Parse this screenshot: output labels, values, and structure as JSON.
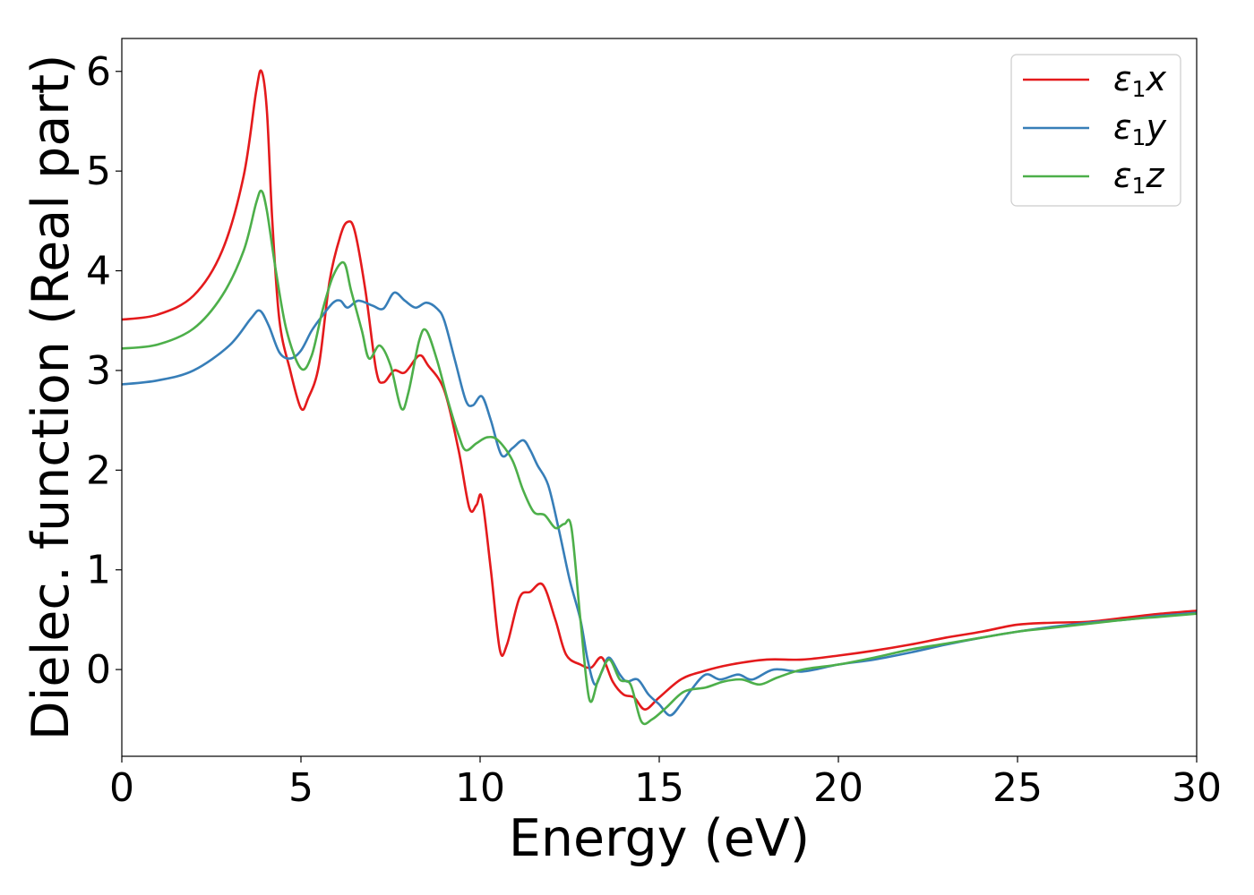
{
  "chart_data": {
    "type": "line",
    "xlabel": "Energy (eV)",
    "ylabel": "Dielec. function (Real part)",
    "xlim": [
      0,
      30
    ],
    "ylim": [
      -0.87,
      6.33
    ],
    "xticks": [
      "0",
      "5",
      "10",
      "15",
      "20",
      "25",
      "30"
    ],
    "yticks": [
      "0",
      "1",
      "2",
      "3",
      "4",
      "5",
      "6"
    ],
    "grid": false,
    "legend_position": "top-right",
    "series": [
      {
        "name": "ε1x",
        "legend_symbol": "ε",
        "legend_sub": "1",
        "legend_var": "x",
        "color": "#e41a1c",
        "points": [
          [
            0,
            3.51
          ],
          [
            1,
            3.56
          ],
          [
            2,
            3.75
          ],
          [
            2.8,
            4.2
          ],
          [
            3.4,
            4.95
          ],
          [
            3.75,
            5.8
          ],
          [
            3.9,
            6.0
          ],
          [
            4.05,
            5.6
          ],
          [
            4.2,
            4.5
          ],
          [
            4.4,
            3.5
          ],
          [
            4.7,
            3.0
          ],
          [
            5.0,
            2.62
          ],
          [
            5.2,
            2.72
          ],
          [
            5.5,
            3.05
          ],
          [
            5.8,
            3.9
          ],
          [
            6.1,
            4.35
          ],
          [
            6.3,
            4.49
          ],
          [
            6.5,
            4.4
          ],
          [
            6.8,
            3.8
          ],
          [
            7.1,
            3.0
          ],
          [
            7.3,
            2.88
          ],
          [
            7.6,
            3.0
          ],
          [
            7.9,
            2.98
          ],
          [
            8.3,
            3.15
          ],
          [
            8.55,
            3.05
          ],
          [
            9.0,
            2.8
          ],
          [
            9.4,
            2.2
          ],
          [
            9.7,
            1.62
          ],
          [
            9.9,
            1.65
          ],
          [
            10.05,
            1.72
          ],
          [
            10.3,
            1.0
          ],
          [
            10.55,
            0.2
          ],
          [
            10.75,
            0.25
          ],
          [
            11.1,
            0.72
          ],
          [
            11.4,
            0.78
          ],
          [
            11.75,
            0.85
          ],
          [
            12.1,
            0.5
          ],
          [
            12.4,
            0.15
          ],
          [
            12.8,
            0.05
          ],
          [
            13.1,
            0.02
          ],
          [
            13.4,
            0.12
          ],
          [
            13.7,
            -0.12
          ],
          [
            14.0,
            -0.25
          ],
          [
            14.3,
            -0.28
          ],
          [
            14.6,
            -0.4
          ],
          [
            15.0,
            -0.28
          ],
          [
            15.6,
            -0.1
          ],
          [
            16.2,
            -0.02
          ],
          [
            17.0,
            0.05
          ],
          [
            18.0,
            0.1
          ],
          [
            19.0,
            0.1
          ],
          [
            20.0,
            0.14
          ],
          [
            21.0,
            0.19
          ],
          [
            22.0,
            0.25
          ],
          [
            23.0,
            0.32
          ],
          [
            24.0,
            0.38
          ],
          [
            25.0,
            0.45
          ],
          [
            26.0,
            0.47
          ],
          [
            27.0,
            0.48
          ],
          [
            28.0,
            0.52
          ],
          [
            29.0,
            0.56
          ],
          [
            30,
            0.59
          ]
        ]
      },
      {
        "name": "ε1y",
        "legend_symbol": "ε",
        "legend_sub": "1",
        "legend_var": "y",
        "color": "#377eb8",
        "points": [
          [
            0,
            2.86
          ],
          [
            1,
            2.9
          ],
          [
            2,
            3.0
          ],
          [
            3,
            3.25
          ],
          [
            3.6,
            3.52
          ],
          [
            3.85,
            3.6
          ],
          [
            4.1,
            3.45
          ],
          [
            4.4,
            3.18
          ],
          [
            4.7,
            3.12
          ],
          [
            5.0,
            3.2
          ],
          [
            5.3,
            3.4
          ],
          [
            5.6,
            3.55
          ],
          [
            5.9,
            3.68
          ],
          [
            6.1,
            3.7
          ],
          [
            6.3,
            3.63
          ],
          [
            6.6,
            3.7
          ],
          [
            7.0,
            3.65
          ],
          [
            7.3,
            3.62
          ],
          [
            7.6,
            3.78
          ],
          [
            7.9,
            3.7
          ],
          [
            8.2,
            3.63
          ],
          [
            8.5,
            3.68
          ],
          [
            8.8,
            3.62
          ],
          [
            9.0,
            3.5
          ],
          [
            9.3,
            3.1
          ],
          [
            9.6,
            2.7
          ],
          [
            9.8,
            2.65
          ],
          [
            10.05,
            2.74
          ],
          [
            10.3,
            2.5
          ],
          [
            10.6,
            2.15
          ],
          [
            10.9,
            2.22
          ],
          [
            11.2,
            2.3
          ],
          [
            11.4,
            2.2
          ],
          [
            11.6,
            2.05
          ],
          [
            11.9,
            1.85
          ],
          [
            12.2,
            1.4
          ],
          [
            12.5,
            0.9
          ],
          [
            12.8,
            0.5
          ],
          [
            13.0,
            0.1
          ],
          [
            13.2,
            -0.15
          ],
          [
            13.4,
            -0.02
          ],
          [
            13.6,
            0.12
          ],
          [
            13.9,
            -0.05
          ],
          [
            14.1,
            -0.12
          ],
          [
            14.4,
            -0.1
          ],
          [
            14.7,
            -0.25
          ],
          [
            15.0,
            -0.35
          ],
          [
            15.3,
            -0.46
          ],
          [
            15.6,
            -0.35
          ],
          [
            15.9,
            -0.2
          ],
          [
            16.3,
            -0.05
          ],
          [
            16.7,
            -0.1
          ],
          [
            17.2,
            -0.05
          ],
          [
            17.6,
            -0.1
          ],
          [
            18.2,
            0.0
          ],
          [
            19.0,
            -0.02
          ],
          [
            20.0,
            0.05
          ],
          [
            21.0,
            0.1
          ],
          [
            22.0,
            0.17
          ],
          [
            23.0,
            0.25
          ],
          [
            24.0,
            0.32
          ],
          [
            25.0,
            0.38
          ],
          [
            26.0,
            0.43
          ],
          [
            27.0,
            0.47
          ],
          [
            28.0,
            0.5
          ],
          [
            29.0,
            0.54
          ],
          [
            30,
            0.57
          ]
        ]
      },
      {
        "name": "ε1z",
        "legend_symbol": "ε",
        "legend_sub": "1",
        "legend_var": "z",
        "color": "#4daf4a",
        "points": [
          [
            0,
            3.22
          ],
          [
            1,
            3.26
          ],
          [
            2,
            3.42
          ],
          [
            2.8,
            3.75
          ],
          [
            3.4,
            4.2
          ],
          [
            3.75,
            4.68
          ],
          [
            3.9,
            4.8
          ],
          [
            4.05,
            4.6
          ],
          [
            4.3,
            4.0
          ],
          [
            4.6,
            3.4
          ],
          [
            5.0,
            3.02
          ],
          [
            5.3,
            3.15
          ],
          [
            5.6,
            3.6
          ],
          [
            5.9,
            3.95
          ],
          [
            6.2,
            4.08
          ],
          [
            6.4,
            3.8
          ],
          [
            6.7,
            3.4
          ],
          [
            6.9,
            3.12
          ],
          [
            7.2,
            3.25
          ],
          [
            7.5,
            3.05
          ],
          [
            7.8,
            2.62
          ],
          [
            8.0,
            2.78
          ],
          [
            8.3,
            3.3
          ],
          [
            8.5,
            3.4
          ],
          [
            8.8,
            3.1
          ],
          [
            9.1,
            2.7
          ],
          [
            9.4,
            2.35
          ],
          [
            9.6,
            2.2
          ],
          [
            9.9,
            2.27
          ],
          [
            10.2,
            2.33
          ],
          [
            10.5,
            2.3
          ],
          [
            10.9,
            2.1
          ],
          [
            11.2,
            1.8
          ],
          [
            11.5,
            1.58
          ],
          [
            11.8,
            1.55
          ],
          [
            12.1,
            1.42
          ],
          [
            12.35,
            1.46
          ],
          [
            12.55,
            1.42
          ],
          [
            12.8,
            0.5
          ],
          [
            13.05,
            -0.3
          ],
          [
            13.3,
            -0.1
          ],
          [
            13.6,
            0.1
          ],
          [
            13.9,
            -0.1
          ],
          [
            14.2,
            -0.15
          ],
          [
            14.5,
            -0.52
          ],
          [
            14.8,
            -0.5
          ],
          [
            15.2,
            -0.38
          ],
          [
            15.7,
            -0.22
          ],
          [
            16.3,
            -0.18
          ],
          [
            16.8,
            -0.12
          ],
          [
            17.3,
            -0.1
          ],
          [
            17.8,
            -0.15
          ],
          [
            18.3,
            -0.08
          ],
          [
            19.0,
            0.0
          ],
          [
            20.0,
            0.05
          ],
          [
            21.0,
            0.12
          ],
          [
            22.0,
            0.2
          ],
          [
            23.0,
            0.26
          ],
          [
            24.0,
            0.32
          ],
          [
            25.0,
            0.38
          ],
          [
            26.0,
            0.42
          ],
          [
            27.0,
            0.46
          ],
          [
            28.0,
            0.5
          ],
          [
            29.0,
            0.53
          ],
          [
            30,
            0.56
          ]
        ]
      }
    ]
  }
}
